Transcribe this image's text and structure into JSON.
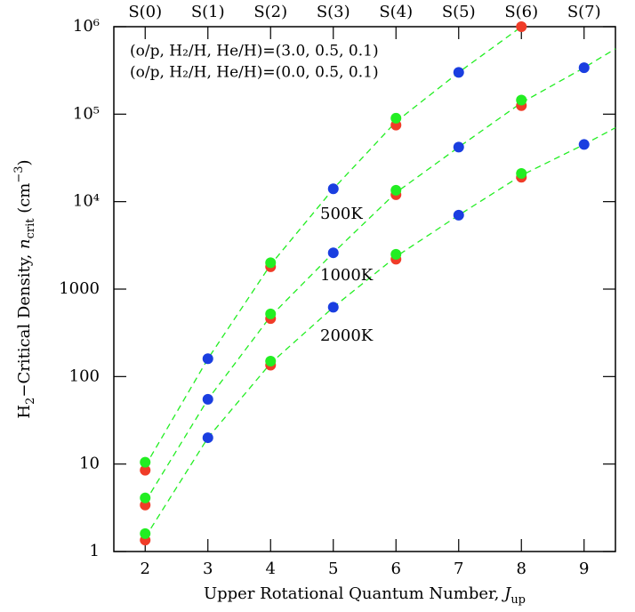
{
  "chart_data": {
    "type": "scatter",
    "xlim": [
      1.5,
      9.5
    ],
    "xticks": [
      2,
      3,
      4,
      5,
      6,
      7,
      8,
      9
    ],
    "ylim": [
      1,
      1000000
    ],
    "log_y": true,
    "yticks": [
      1,
      10,
      100,
      1000,
      {
        "value": 10000,
        "label": "10⁴"
      },
      {
        "value": 100000,
        "label": "10⁵"
      },
      {
        "value": 1000000,
        "label": "10⁶"
      }
    ],
    "top_ticks": [
      {
        "value": 2,
        "label": "S(0)"
      },
      {
        "value": 3,
        "label": "S(1)"
      },
      {
        "value": 4,
        "label": "S(2)"
      },
      {
        "value": 5,
        "label": "S(3)"
      },
      {
        "value": 6,
        "label": "S(4)"
      },
      {
        "value": 7,
        "label": "S(5)"
      },
      {
        "value": 8,
        "label": "S(6)"
      },
      {
        "value": 9,
        "label": "S(7)"
      }
    ],
    "xlabel": {
      "text": "Upper Rotational Quantum Number, ",
      "var": "J",
      "sub": "up"
    },
    "ylabel": {
      "pre": "H",
      "sub1": "2",
      "text": "−Critical Density, ",
      "var": "n",
      "sub": "crit",
      "unit": " (cm",
      "exp": "−3",
      "close": ")"
    },
    "legend_texts": [
      {
        "text": "(o/p, H₂/H, He/H)=(3.0, 0.5, 0.1)",
        "color": "#000000"
      },
      {
        "text": "(o/p, H₂/H, He/H)=(0.0, 0.5, 0.1)",
        "color": "#22ee22"
      }
    ],
    "annotations": [
      "500K",
      "1000K",
      "2000K"
    ],
    "curves": [
      {
        "color": "#22ee22",
        "x": [
          2,
          3,
          4,
          5,
          6,
          7,
          8
        ],
        "values": [
          9.5,
          160,
          1900,
          14000,
          82000,
          300000,
          1000000
        ]
      },
      {
        "color": "#22ee22",
        "x": [
          2,
          3,
          4,
          5,
          6,
          7,
          8,
          9,
          9.5
        ],
        "values": [
          3.7,
          55,
          490,
          2600,
          12700,
          42000,
          135000,
          340000,
          560000
        ]
      },
      {
        "color": "#22ee22",
        "x": [
          2,
          3,
          4,
          5,
          6,
          7,
          8,
          9,
          9.5
        ],
        "values": [
          1.45,
          20,
          142,
          620,
          2350,
          7000,
          20000,
          45000,
          70000
        ]
      }
    ],
    "series": [
      {
        "color": "#f03c28",
        "x": [
          2,
          2,
          2,
          4,
          4,
          4,
          6,
          6,
          6,
          8,
          8,
          8
        ],
        "values": [
          8.5,
          3.4,
          1.35,
          1800,
          460,
          135,
          75000,
          12000,
          2200,
          1000000,
          125000,
          19000
        ]
      },
      {
        "color": "#22ee22",
        "x": [
          2,
          2,
          2,
          4,
          4,
          4,
          6,
          6,
          6,
          8,
          8
        ],
        "values": [
          10.5,
          4.1,
          1.6,
          2000,
          520,
          150,
          90000,
          13500,
          2500,
          145000,
          21000
        ]
      },
      {
        "color": "#1a3ee0",
        "x": [
          3,
          3,
          3,
          5,
          5,
          5,
          7,
          7,
          7,
          9,
          9
        ],
        "values": [
          160,
          55,
          20,
          14000,
          2600,
          620,
          300000,
          42000,
          7000,
          340000,
          45000
        ]
      }
    ]
  }
}
